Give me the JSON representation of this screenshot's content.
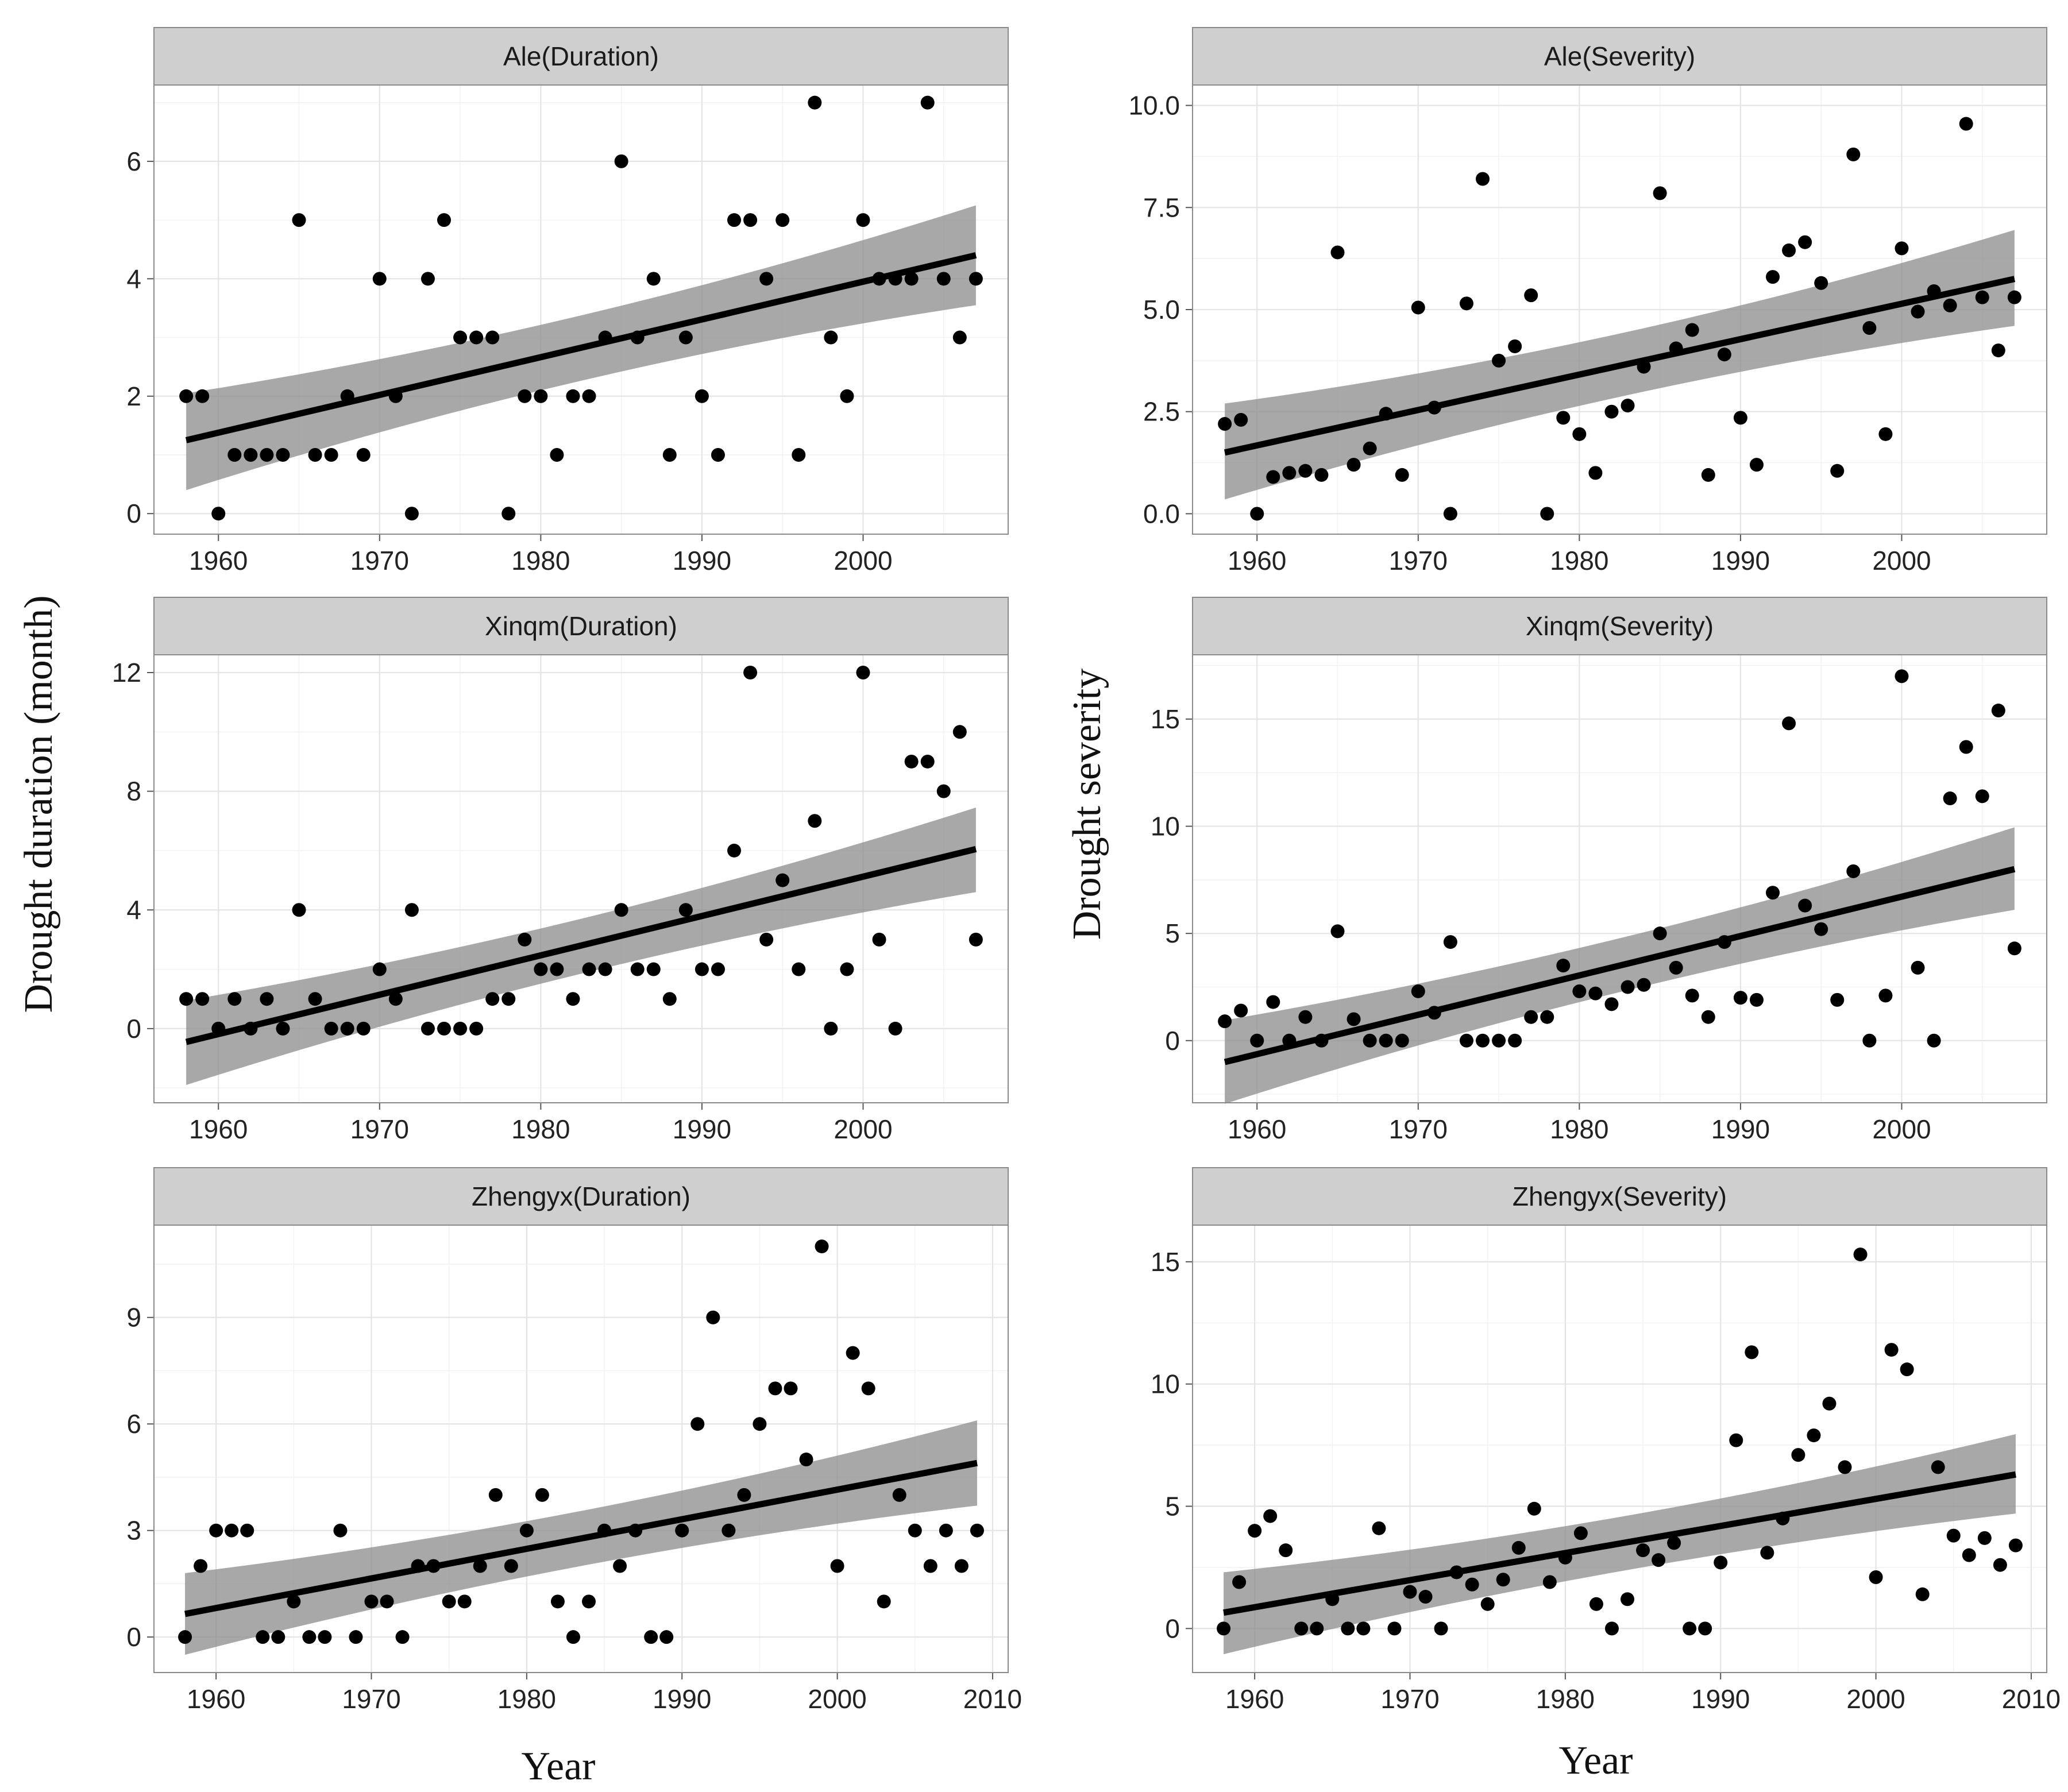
{
  "figure": {
    "xlabel": "Year",
    "ylabel_duration": "Drought duration (month)",
    "ylabel_severity": "Drought severity"
  },
  "chart_data": [
    {
      "type": "scatter",
      "title": "Ale(Duration)",
      "xlim": [
        1956,
        2009
      ],
      "ylim": [
        -0.35,
        7.3
      ],
      "xticks": [
        1960,
        1970,
        1980,
        1990,
        2000
      ],
      "yticks": [
        0,
        2,
        4,
        6
      ],
      "ytick_labels": [
        "0",
        "2",
        "4",
        "6"
      ],
      "x": [
        1958,
        1959,
        1960,
        1961,
        1962,
        1963,
        1964,
        1965,
        1966,
        1967,
        1968,
        1969,
        1970,
        1971,
        1972,
        1973,
        1974,
        1975,
        1976,
        1977,
        1978,
        1979,
        1980,
        1981,
        1982,
        1983,
        1984,
        1985,
        1986,
        1987,
        1988,
        1989,
        1990,
        1991,
        1992,
        1993,
        1994,
        1995,
        1996,
        1997,
        1998,
        1999,
        2000,
        2001,
        2002,
        2003,
        2004,
        2005,
        2006,
        2007
      ],
      "y": [
        2,
        2,
        0,
        1,
        1,
        1,
        1,
        5,
        1,
        1,
        2,
        1,
        4,
        2,
        0,
        4,
        5,
        3,
        3,
        3,
        0,
        2,
        2,
        1,
        2,
        2,
        3,
        6,
        3,
        4,
        1,
        3,
        2,
        1,
        5,
        5,
        4,
        5,
        1,
        7,
        3,
        2,
        5,
        4,
        4,
        4,
        7,
        4,
        3,
        4
      ],
      "fit": {
        "x": [
          1958,
          2007
        ],
        "y": [
          1.25,
          4.4
        ]
      },
      "ci_lower": [
        0.4,
        3.55
      ],
      "ci_upper": [
        2.05,
        5.25
      ],
      "ci_mid_x": 1982.5,
      "ci_mid": [
        2.55,
        3.1
      ]
    },
    {
      "type": "scatter",
      "title": "Ale(Severity)",
      "xlim": [
        1956,
        2009
      ],
      "ylim": [
        -0.5,
        10.5
      ],
      "xticks": [
        1960,
        1970,
        1980,
        1990,
        2000
      ],
      "yticks": [
        0,
        2.5,
        5,
        7.5,
        10
      ],
      "ytick_labels": [
        "0.0",
        "2.5",
        "5.0",
        "7.5",
        "10.0"
      ],
      "x": [
        1958,
        1959,
        1960,
        1961,
        1962,
        1963,
        1964,
        1965,
        1966,
        1967,
        1968,
        1969,
        1970,
        1971,
        1972,
        1973,
        1974,
        1975,
        1976,
        1977,
        1978,
        1979,
        1980,
        1981,
        1982,
        1983,
        1984,
        1985,
        1986,
        1987,
        1988,
        1989,
        1990,
        1991,
        1992,
        1993,
        1994,
        1995,
        1996,
        1997,
        1998,
        1999,
        2000,
        2001,
        2002,
        2003,
        2004,
        2005,
        2006,
        2007
      ],
      "y": [
        2.2,
        2.3,
        0,
        0.9,
        1.0,
        1.05,
        0.95,
        6.4,
        1.2,
        1.6,
        2.45,
        0.95,
        5.05,
        2.6,
        0,
        5.15,
        8.2,
        3.75,
        4.1,
        5.35,
        0,
        2.35,
        1.95,
        1.0,
        2.5,
        2.65,
        3.6,
        7.85,
        4.05,
        4.5,
        0.95,
        3.9,
        2.35,
        1.2,
        5.8,
        6.45,
        6.65,
        5.65,
        1.05,
        8.8,
        4.55,
        1.95,
        6.5,
        4.95,
        5.45,
        5.1,
        9.55,
        5.3,
        4.0,
        5.3
      ],
      "fit": {
        "x": [
          1958,
          2007
        ],
        "y": [
          1.5,
          5.75
        ]
      },
      "ci_lower": [
        0.35,
        4.6
      ],
      "ci_upper": [
        2.7,
        6.95
      ],
      "ci_mid_x": 1982.5,
      "ci_mid": [
        3.25,
        4.0
      ]
    },
    {
      "type": "scatter",
      "title": "Xinqm(Duration)",
      "xlim": [
        1956,
        2009
      ],
      "ylim": [
        -2.5,
        12.6
      ],
      "xticks": [
        1960,
        1970,
        1980,
        1990,
        2000
      ],
      "yticks": [
        0,
        4,
        8,
        12
      ],
      "ytick_labels": [
        "0",
        "4",
        "8",
        "12"
      ],
      "x": [
        1958,
        1959,
        1960,
        1961,
        1962,
        1963,
        1964,
        1965,
        1966,
        1967,
        1968,
        1969,
        1970,
        1971,
        1972,
        1973,
        1974,
        1975,
        1976,
        1977,
        1978,
        1979,
        1980,
        1981,
        1982,
        1983,
        1984,
        1985,
        1986,
        1987,
        1988,
        1989,
        1990,
        1991,
        1992,
        1993,
        1994,
        1995,
        1996,
        1997,
        1998,
        1999,
        2000,
        2001,
        2002,
        2003,
        2004,
        2005,
        2006,
        2007
      ],
      "y": [
        1,
        1,
        0,
        1,
        0,
        1,
        0,
        4,
        1,
        0,
        0,
        0,
        2,
        1,
        4,
        0,
        0,
        0,
        0,
        1,
        1,
        3,
        2,
        2,
        1,
        2,
        2,
        4,
        2,
        2,
        1,
        4,
        2,
        2,
        6,
        12,
        3,
        5,
        2,
        7,
        0,
        2,
        12,
        3,
        0,
        9,
        9,
        8,
        10,
        3
      ],
      "fit": {
        "x": [
          1958,
          2007
        ],
        "y": [
          -0.45,
          6.05
        ]
      },
      "ci_lower": [
        -1.9,
        4.6
      ],
      "ci_upper": [
        0.95,
        7.45
      ],
      "ci_mid_x": 1982.5,
      "ci_mid": [
        2.35,
        3.2
      ]
    },
    {
      "type": "scatter",
      "title": "Xinqm(Severity)",
      "xlim": [
        1956,
        2009
      ],
      "ylim": [
        -2.9,
        18.0
      ],
      "xticks": [
        1960,
        1970,
        1980,
        1990,
        2000
      ],
      "yticks": [
        0,
        5,
        10,
        15
      ],
      "ytick_labels": [
        "0",
        "5",
        "10",
        "15"
      ],
      "x": [
        1958,
        1959,
        1960,
        1961,
        1962,
        1963,
        1964,
        1965,
        1966,
        1967,
        1968,
        1969,
        1970,
        1971,
        1972,
        1973,
        1974,
        1975,
        1976,
        1977,
        1978,
        1979,
        1980,
        1981,
        1982,
        1983,
        1984,
        1985,
        1986,
        1987,
        1988,
        1989,
        1990,
        1991,
        1992,
        1993,
        1994,
        1995,
        1996,
        1997,
        1998,
        1999,
        2000,
        2001,
        2002,
        2003,
        2004,
        2005,
        2006,
        2007
      ],
      "y": [
        0.9,
        1.4,
        0,
        1.8,
        0,
        1.1,
        0,
        5.1,
        1.0,
        0,
        0,
        0,
        2.3,
        1.3,
        4.6,
        0,
        0,
        0,
        0,
        1.1,
        1.1,
        3.5,
        2.3,
        2.2,
        1.7,
        2.5,
        2.6,
        5.0,
        3.4,
        2.1,
        1.1,
        4.6,
        2.0,
        1.9,
        6.9,
        14.8,
        6.3,
        5.2,
        1.9,
        7.9,
        0,
        2.1,
        17.0,
        3.4,
        0,
        11.3,
        13.7,
        11.4,
        15.4,
        4.3
      ],
      "fit": {
        "x": [
          1958,
          2007
        ],
        "y": [
          -1.0,
          8.0
        ]
      },
      "ci_lower": [
        -2.95,
        6.1
      ],
      "ci_upper": [
        0.95,
        9.95
      ],
      "ci_mid_x": 1982.5,
      "ci_mid": [
        2.95,
        4.1
      ]
    },
    {
      "type": "scatter",
      "title": "Zhengyx(Duration)",
      "xlim": [
        1956,
        2011
      ],
      "ylim": [
        -1.0,
        11.6
      ],
      "xticks": [
        1960,
        1970,
        1980,
        1990,
        2000,
        2010
      ],
      "yticks": [
        0,
        3,
        6,
        9
      ],
      "ytick_labels": [
        "0",
        "3",
        "6",
        "9"
      ],
      "x": [
        1958,
        1959,
        1960,
        1961,
        1962,
        1963,
        1964,
        1965,
        1966,
        1967,
        1968,
        1969,
        1970,
        1971,
        1972,
        1973,
        1974,
        1975,
        1976,
        1977,
        1978,
        1979,
        1980,
        1981,
        1982,
        1983,
        1984,
        1985,
        1986,
        1987,
        1988,
        1989,
        1990,
        1991,
        1992,
        1993,
        1994,
        1995,
        1996,
        1997,
        1998,
        1999,
        2000,
        2001,
        2002,
        2003,
        2004,
        2005,
        2006,
        2007,
        2008,
        2009
      ],
      "y": [
        0,
        2,
        3,
        3,
        3,
        0,
        0,
        1,
        0,
        0,
        3,
        0,
        1,
        1,
        0,
        2,
        2,
        1,
        1,
        2,
        4,
        2,
        3,
        4,
        1,
        0,
        1,
        3,
        2,
        3,
        0,
        0,
        3,
        6,
        9,
        3,
        4,
        6,
        7,
        7,
        5,
        11,
        2,
        8,
        7,
        1,
        4,
        3,
        2,
        3,
        2,
        3
      ],
      "fit": {
        "x": [
          1958,
          2009
        ],
        "y": [
          0.65,
          4.9
        ]
      },
      "ci_lower": [
        -0.5,
        3.7
      ],
      "ci_upper": [
        1.8,
        6.1
      ],
      "ci_mid_x": 1983.5,
      "ci_mid": [
        2.4,
        3.15
      ]
    },
    {
      "type": "scatter",
      "title": "Zhengyx(Severity)",
      "xlim": [
        1956,
        2011
      ],
      "ylim": [
        -1.8,
        16.5
      ],
      "xticks": [
        1960,
        1970,
        1980,
        1990,
        2000,
        2010
      ],
      "yticks": [
        0,
        5,
        10,
        15
      ],
      "ytick_labels": [
        "0",
        "5",
        "10",
        "15"
      ],
      "x": [
        1958,
        1959,
        1960,
        1961,
        1962,
        1963,
        1964,
        1965,
        1966,
        1967,
        1968,
        1969,
        1970,
        1971,
        1972,
        1973,
        1974,
        1975,
        1976,
        1977,
        1978,
        1979,
        1980,
        1981,
        1982,
        1983,
        1984,
        1985,
        1986,
        1987,
        1988,
        1989,
        1990,
        1991,
        1992,
        1993,
        1994,
        1995,
        1996,
        1997,
        1998,
        1999,
        2000,
        2001,
        2002,
        2003,
        2004,
        2005,
        2006,
        2007,
        2008,
        2009
      ],
      "y": [
        0,
        1.9,
        4.0,
        4.6,
        3.2,
        0,
        0,
        1.2,
        0,
        0,
        4.1,
        0,
        1.5,
        1.3,
        0,
        2.3,
        1.8,
        1.0,
        2.0,
        3.3,
        4.9,
        1.9,
        2.9,
        3.9,
        1.0,
        0,
        1.2,
        3.2,
        2.8,
        3.5,
        0,
        0,
        2.7,
        7.7,
        11.3,
        3.1,
        4.5,
        7.1,
        7.9,
        9.2,
        6.6,
        15.3,
        2.1,
        11.4,
        10.6,
        1.4,
        6.6,
        3.8,
        3.0,
        3.7,
        2.6,
        3.4
      ],
      "fit": {
        "x": [
          1958,
          2009
        ],
        "y": [
          0.65,
          6.3
        ]
      },
      "ci_lower": [
        -1.05,
        4.7
      ],
      "ci_upper": [
        2.3,
        7.95
      ],
      "ci_mid_x": 1983.5,
      "ci_mid": [
        2.85,
        4.0
      ]
    }
  ]
}
